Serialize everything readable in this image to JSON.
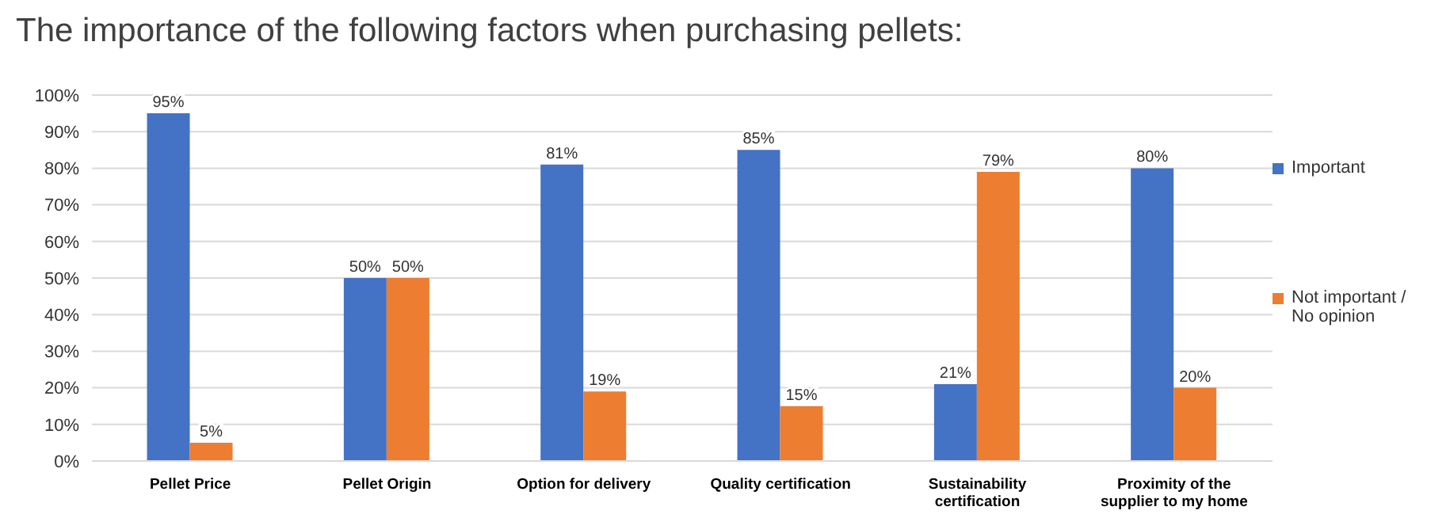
{
  "chart_data": {
    "type": "bar",
    "title": "The importance of the following factors when purchasing pellets:",
    "categories": [
      "Pellet Price",
      "Pellet Origin",
      "Option for delivery",
      "Quality certification",
      "Sustainability certification",
      "Proximity of the supplier to my home"
    ],
    "series": [
      {
        "name": "Important",
        "color": "#4472c4",
        "values": [
          95,
          50,
          81,
          85,
          21,
          80
        ],
        "value_labels": [
          "95%",
          "50%",
          "81%",
          "85%",
          "21%",
          "80%"
        ]
      },
      {
        "name": "Not important / No opinion",
        "color": "#ed7d31",
        "values": [
          5,
          50,
          19,
          15,
          79,
          20
        ],
        "value_labels": [
          "5%",
          "50%",
          "19%",
          "15%",
          "79%",
          "20%"
        ]
      }
    ],
    "ylim": [
      0,
      100
    ],
    "yticks": [
      {
        "value": 0,
        "label": "0%"
      },
      {
        "value": 10,
        "label": "10%"
      },
      {
        "value": 20,
        "label": "20%"
      },
      {
        "value": 30,
        "label": "30%"
      },
      {
        "value": 40,
        "label": "40%"
      },
      {
        "value": 50,
        "label": "50%"
      },
      {
        "value": 60,
        "label": "60%"
      },
      {
        "value": 70,
        "label": "70%"
      },
      {
        "value": 80,
        "label": "80%"
      },
      {
        "value": 90,
        "label": "90%"
      },
      {
        "value": 100,
        "label": "100%"
      }
    ],
    "grid": "y",
    "legend": "right"
  }
}
